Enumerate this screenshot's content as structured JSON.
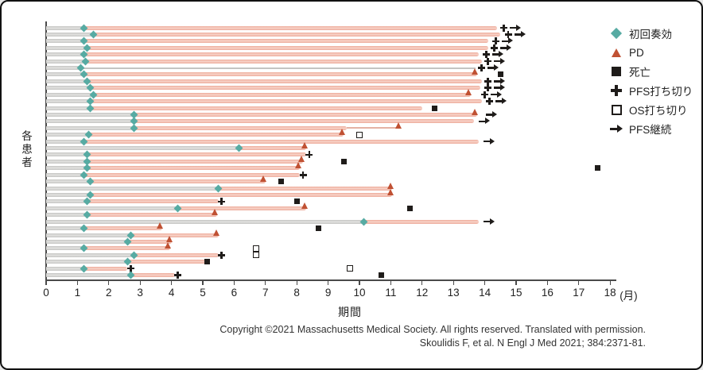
{
  "colors": {
    "response_teal": "#57aba3",
    "pd_red": "#c05133",
    "bar_salmon": "#efb0a0",
    "bar_gray": "#c9c9c7",
    "marker_black": "#1f1c1a",
    "thin_line_gray": "#c4c4c2",
    "thin_line_salmon": "#e5b2a3"
  },
  "legend": [
    {
      "icon": "first-response-diamond-icon",
      "label": "初回奏効"
    },
    {
      "icon": "pd-triangle-icon",
      "label": "PD"
    },
    {
      "icon": "death-square-icon",
      "label": "死亡"
    },
    {
      "icon": "pfs-censor-plus-icon",
      "label": "PFS打ち切り"
    },
    {
      "icon": "os-censor-open-square-icon",
      "label": "OS打ち切り"
    },
    {
      "icon": "pfs-ongoing-arrow-icon",
      "label": "PFS継続"
    }
  ],
  "copyright_line1": "Copyright ©2021 Massachusetts Medical Society. All rights reserved. Translated with permission.",
  "copyright_line2": "Skoulidis F, et al. N Engl J Med 2021; 384:2371-81.",
  "chart_data": {
    "type": "bar",
    "variant": "horizontal-swimmer",
    "xlabel": "期間",
    "xunit": "(月)",
    "ylabel": "各患者",
    "xlim": [
      0,
      18
    ],
    "ticks": [
      0,
      1,
      2,
      3,
      4,
      5,
      6,
      7,
      8,
      9,
      10,
      11,
      12,
      13,
      14,
      15,
      16,
      17,
      18
    ],
    "grid": false,
    "legend_position": "right",
    "marker_semantics": {
      "diamond": "初回奏効 (first response)",
      "pd": "PD (progression)",
      "death": "死亡 (death)",
      "plus": "PFS打ち切り (PFS censored)",
      "osq": "OS打ち切り (OS censored)",
      "arrow": "PFS継続 (PFS ongoing)"
    },
    "patients": [
      {
        "response": 1.2,
        "end": 14.4,
        "markers": [
          [
            "plus",
            14.6
          ],
          [
            "arrow",
            14.95
          ]
        ]
      },
      {
        "response": 1.5,
        "end": 14.5,
        "markers": [
          [
            "plus",
            14.75
          ],
          [
            "arrow",
            15.1
          ]
        ]
      },
      {
        "response": 1.2,
        "end": 14.1,
        "markers": [
          [
            "plus",
            14.35
          ],
          [
            "arrow",
            14.7
          ]
        ]
      },
      {
        "response": 1.3,
        "end": 14.1,
        "markers": [
          [
            "plus",
            14.3
          ],
          [
            "arrow",
            14.65
          ]
        ]
      },
      {
        "response": 1.2,
        "end": 13.8,
        "markers": [
          [
            "plus",
            14.05
          ],
          [
            "arrow",
            14.4
          ]
        ]
      },
      {
        "response": 1.25,
        "end": 13.9,
        "markers": [
          [
            "plus",
            14.1
          ],
          [
            "arrow",
            14.45
          ]
        ]
      },
      {
        "response": 1.1,
        "end": null,
        "thin": [
          1.1,
          13.7
        ],
        "markers": [
          [
            "plus",
            13.9
          ],
          [
            "arrow",
            14.25
          ]
        ]
      },
      {
        "response": 1.2,
        "end": 13.75,
        "markers": [
          [
            "pd",
            13.7
          ],
          [
            "death",
            14.5
          ]
        ]
      },
      {
        "response": 1.3,
        "end": 13.9,
        "markers": [
          [
            "plus",
            14.1
          ],
          [
            "arrow",
            14.45
          ]
        ]
      },
      {
        "response": 1.4,
        "end": 13.85,
        "markers": [
          [
            "plus",
            14.1
          ],
          [
            "arrow",
            14.45
          ]
        ]
      },
      {
        "response": 1.5,
        "end": 13.55,
        "markers": [
          [
            "pd",
            13.5
          ],
          [
            "plus",
            14.0
          ],
          [
            "arrow",
            14.35
          ]
        ]
      },
      {
        "response": 1.4,
        "end": 13.9,
        "markers": [
          [
            "plus",
            14.15
          ],
          [
            "arrow",
            14.5
          ]
        ]
      },
      {
        "response": 1.4,
        "end": 12.0,
        "markers": [
          [
            "death",
            12.4
          ]
        ]
      },
      {
        "response": 2.8,
        "end": 13.75,
        "markers": [
          [
            "pd",
            13.7
          ],
          [
            "arrow",
            14.2
          ]
        ]
      },
      {
        "response": 2.8,
        "end": 13.65,
        "markers": [
          [
            "arrow",
            13.95
          ]
        ]
      },
      {
        "response": 2.8,
        "end": 9.6,
        "thin": [
          9.6,
          11.3,
          "salmon"
        ],
        "markers": [
          [
            "pd",
            11.25
          ]
        ]
      },
      {
        "response": 1.35,
        "end": 9.5,
        "markers": [
          [
            "pd",
            9.45
          ],
          [
            "osq",
            10.0
          ]
        ]
      },
      {
        "response": 1.2,
        "end": 13.8,
        "markers": [
          [
            "arrow",
            14.1
          ]
        ]
      },
      {
        "response": 6.15,
        "end": 8.3,
        "markers": [
          [
            "pd",
            8.25
          ]
        ]
      },
      {
        "response": 1.3,
        "end": 8.3,
        "markers": [
          [
            "plus",
            8.4
          ]
        ]
      },
      {
        "response": 1.3,
        "end": 8.2,
        "markers": [
          [
            "pd",
            8.15
          ],
          [
            "death",
            9.5
          ]
        ]
      },
      {
        "response": 1.3,
        "end": 8.1,
        "markers": [
          [
            "pd",
            8.05
          ],
          [
            "death",
            17.6
          ]
        ]
      },
      {
        "response": 1.2,
        "end": 8.1,
        "markers": [
          [
            "plus",
            8.2
          ]
        ]
      },
      {
        "response": 1.4,
        "end": 7.0,
        "markers": [
          [
            "pd",
            6.95
          ],
          [
            "death",
            7.5
          ]
        ]
      },
      {
        "response": 5.5,
        "end": 11.05,
        "markers": [
          [
            "pd",
            11.0
          ]
        ]
      },
      {
        "response": 1.4,
        "end": 11.05,
        "markers": [
          [
            "pd",
            11.0
          ]
        ]
      },
      {
        "response": 1.3,
        "end": 5.5,
        "markers": [
          [
            "plus",
            5.6
          ],
          [
            "death",
            8.0
          ]
        ]
      },
      {
        "response": 4.2,
        "end": 8.3,
        "markers": [
          [
            "pd",
            8.25
          ],
          [
            "death",
            11.6
          ]
        ]
      },
      {
        "response": 1.3,
        "end": 5.45,
        "markers": [
          [
            "pd",
            5.4
          ]
        ]
      },
      {
        "response": 10.15,
        "end": 13.8,
        "markers": [
          [
            "arrow",
            14.1
          ]
        ]
      },
      {
        "response": 1.2,
        "end": 3.7,
        "markers": [
          [
            "pd",
            3.65
          ],
          [
            "death",
            8.7
          ]
        ]
      },
      {
        "response": 2.7,
        "end": 5.5,
        "markers": [
          [
            "pd",
            5.45
          ]
        ]
      },
      {
        "response": 2.6,
        "end": 4.0,
        "markers": [
          [
            "pd",
            3.95
          ]
        ]
      },
      {
        "response": 1.2,
        "end": 3.95,
        "markers": [
          [
            "pd",
            3.9
          ],
          [
            "osq",
            6.7
          ]
        ]
      },
      {
        "response": 2.8,
        "end": 5.5,
        "markers": [
          [
            "plus",
            5.6
          ],
          [
            "osq",
            6.7
          ]
        ]
      },
      {
        "response": 2.6,
        "end": 5.1,
        "markers": [
          [
            "death",
            5.15
          ]
        ]
      },
      {
        "response": 1.2,
        "end": 2.6,
        "markers": [
          [
            "plus",
            2.7
          ],
          [
            "osq",
            9.7
          ]
        ]
      },
      {
        "response": 2.7,
        "end": 4.1,
        "markers": [
          [
            "plus",
            4.2
          ],
          [
            "death",
            10.7
          ]
        ]
      }
    ]
  }
}
